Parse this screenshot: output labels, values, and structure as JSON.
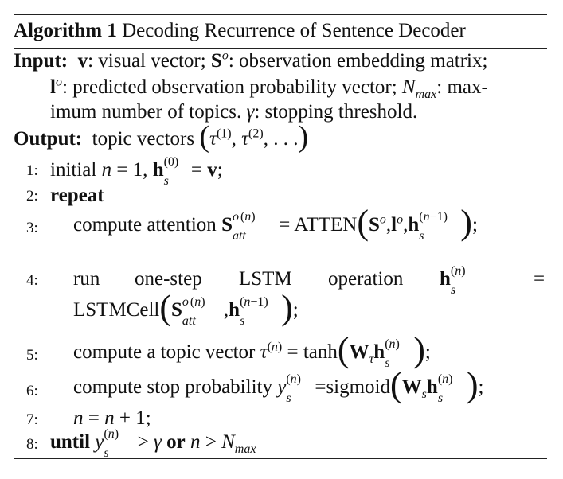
{
  "algorithm": {
    "label": "Algorithm 1",
    "title": "Decoding Recurrence of Sentence Decoder"
  },
  "input": {
    "label": "Input:",
    "v_desc": ": visual vector;",
    "S_desc": ": observation embedding matrix;",
    "l_desc": ": predicted observation probability vector;",
    "N_desc_1": ": max-",
    "N_desc_2": "imum number of topics.",
    "gamma_desc": ": stopping threshold."
  },
  "output": {
    "label": "Output:",
    "text": "topic vectors"
  },
  "steps": [
    {
      "num": "1:",
      "text": "initial"
    },
    {
      "num": "2:",
      "text": "repeat"
    },
    {
      "num": "3:",
      "text": "compute attention",
      "fn": "ATTEN"
    },
    {
      "num": "4:",
      "words": [
        "run",
        "one-step",
        "LSTM",
        "operation"
      ],
      "fn": "LSTMCell"
    },
    {
      "num": "5:",
      "text": "compute a topic vector",
      "fn": "tanh"
    },
    {
      "num": "6:",
      "text": "compute stop probability",
      "fn": "sigmoid"
    },
    {
      "num": "7:",
      "text": ""
    },
    {
      "num": "8:",
      "text": "until",
      "or": "or"
    }
  ]
}
